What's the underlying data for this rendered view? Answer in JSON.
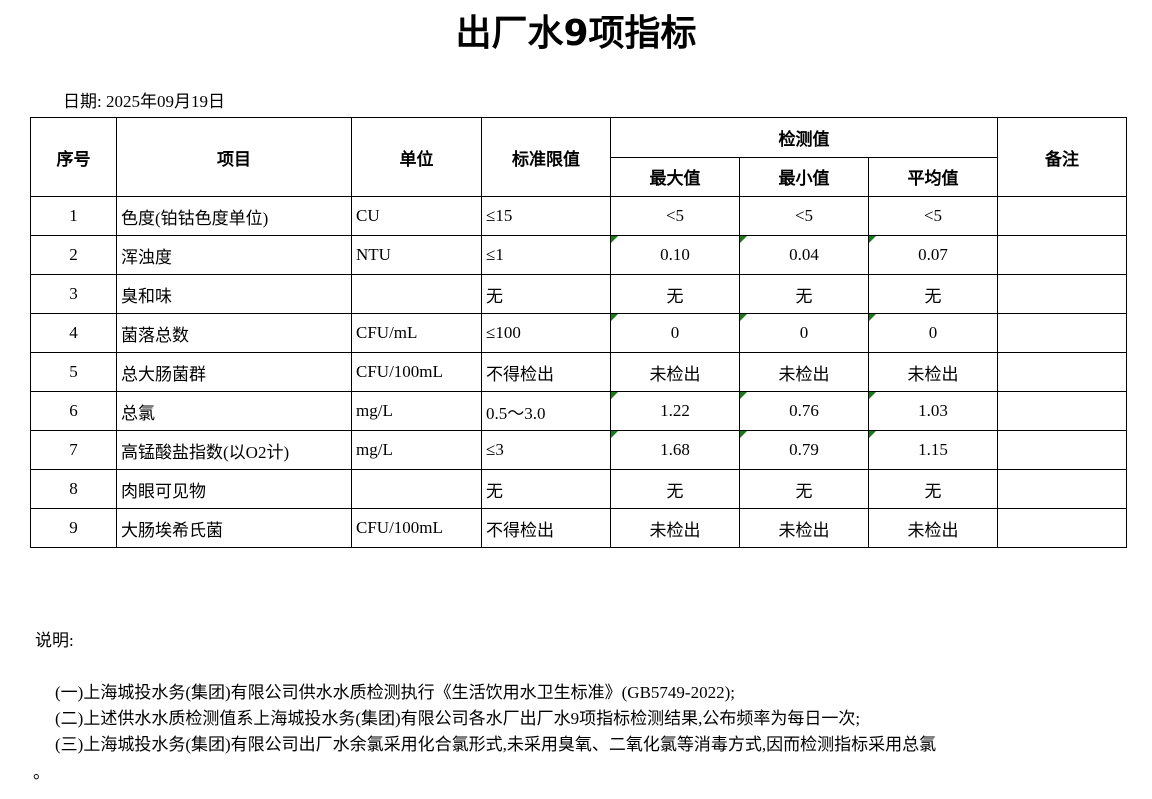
{
  "title": "出厂水9项指标",
  "date_label": "日期:",
  "date": "2025年09月19日",
  "table": {
    "headers": {
      "no": "序号",
      "item": "项目",
      "unit": "单位",
      "limit": "标准限值",
      "measured": "检测值",
      "max": "最大值",
      "min": "最小值",
      "avg": "平均值",
      "remark": "备注"
    },
    "rows": [
      {
        "no": "1",
        "item": "色度(铂钴色度单位)",
        "unit": "CU",
        "limit": "≤15",
        "max": "<5",
        "min": "<5",
        "avg": "<5",
        "remark": "",
        "flag": false
      },
      {
        "no": "2",
        "item": "浑浊度",
        "unit": "NTU",
        "limit": "≤1",
        "max": "0.10",
        "min": "0.04",
        "avg": "0.07",
        "remark": "",
        "flag": true
      },
      {
        "no": "3",
        "item": "臭和味",
        "unit": "",
        "limit": "无",
        "max": "无",
        "min": "无",
        "avg": "无",
        "remark": "",
        "flag": false
      },
      {
        "no": "4",
        "item": "菌落总数",
        "unit": "CFU/mL",
        "limit": "≤100",
        "max": "0",
        "min": "0",
        "avg": "0",
        "remark": "",
        "flag": true
      },
      {
        "no": "5",
        "item": "总大肠菌群",
        "unit": "CFU/100mL",
        "limit": "不得检出",
        "max": "未检出",
        "min": "未检出",
        "avg": "未检出",
        "remark": "",
        "flag": false
      },
      {
        "no": "6",
        "item": "总氯",
        "unit": "mg/L",
        "limit": "0.5～3.0",
        "max": "1.22",
        "min": "0.76",
        "avg": "1.03",
        "remark": "",
        "flag": true
      },
      {
        "no": "7",
        "item": "高锰酸盐指数(以O2计)",
        "unit": "mg/L",
        "limit": "≤3",
        "max": "1.68",
        "min": "0.79",
        "avg": "1.15",
        "remark": "",
        "flag": true
      },
      {
        "no": "8",
        "item": "肉眼可见物",
        "unit": "",
        "limit": "无",
        "max": "无",
        "min": "无",
        "avg": "无",
        "remark": "",
        "flag": false
      },
      {
        "no": "9",
        "item": "大肠埃希氏菌",
        "unit": "CFU/100mL",
        "limit": "不得检出",
        "max": "未检出",
        "min": "未检出",
        "avg": "未检出",
        "remark": "",
        "flag": false
      }
    ]
  },
  "notes": {
    "heading": "说明:",
    "items": [
      "(一)上海城投水务(集团)有限公司供水水质检测执行《生活饮用水卫生标准》(GB5749-2022);",
      "(二)上述供水水质检测值系上海城投水务(集团)有限公司各水厂出厂水9项指标检测结果,公布频率为每日一次;",
      "(三)上海城投水务(集团)有限公司出厂水余氯采用化合氯形式,未采用臭氧、二氧化氯等消毒方式,因而检测指标采用总氯"
    ],
    "tail": "。"
  },
  "colors": {
    "flag_marker": "#1a7a1a"
  }
}
